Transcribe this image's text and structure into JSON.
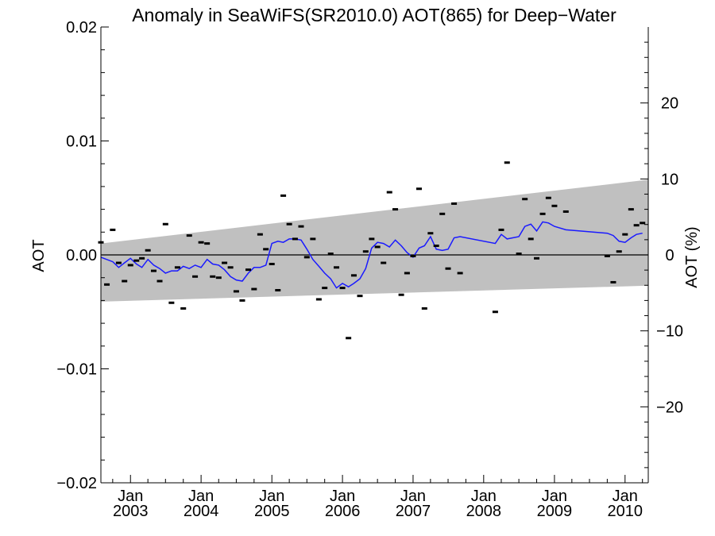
{
  "chart_data": {
    "type": "scatter",
    "title": "Anomaly in SeaWiFS(SR2010.0) AOT(865) for Deep−Water",
    "ylabel": "AOT",
    "y2label": "AOT (%)",
    "xlim": [
      "2002-08-01",
      "2010-05-01"
    ],
    "ylim": [
      -0.02,
      0.02
    ],
    "y2lim": [
      -30,
      30
    ],
    "yticks": [
      {
        "value": 0.02,
        "label": "0.02"
      },
      {
        "value": 0.01,
        "label": "0.01"
      },
      {
        "value": 0.0,
        "label": "0.00"
      },
      {
        "value": -0.01,
        "label": "−0.01"
      },
      {
        "value": -0.02,
        "label": "−0.02"
      }
    ],
    "y2ticks": [
      {
        "value": 20,
        "label": "20"
      },
      {
        "value": 10,
        "label": "10"
      },
      {
        "value": 0,
        "label": "0"
      },
      {
        "value": -10,
        "label": "−10"
      },
      {
        "value": -20,
        "label": "−20"
      }
    ],
    "xticks": [
      {
        "date": "2003-01-01",
        "month": "Jan",
        "year": "2003"
      },
      {
        "date": "2004-01-01",
        "month": "Jan",
        "year": "2004"
      },
      {
        "date": "2005-01-01",
        "month": "Jan",
        "year": "2005"
      },
      {
        "date": "2006-01-01",
        "month": "Jan",
        "year": "2006"
      },
      {
        "date": "2007-01-01",
        "month": "Jan",
        "year": "2007"
      },
      {
        "date": "2008-01-01",
        "month": "Jan",
        "year": "2008"
      },
      {
        "date": "2009-01-01",
        "month": "Jan",
        "year": "2009"
      },
      {
        "date": "2010-01-01",
        "month": "Jan",
        "year": "2010"
      }
    ],
    "band": {
      "color": "#c0c0c0",
      "x": [
        "2002-08-01",
        "2010-05-01"
      ],
      "upper": [
        0.001,
        0.0066
      ],
      "lower": [
        -0.0041,
        -0.0027
      ]
    },
    "zero_line": 0,
    "series": [
      {
        "marker": "dash",
        "color": "#000000",
        "points": [
          [
            "2002-08-01",
            0.0011
          ],
          [
            "2002-09-01",
            -0.0026
          ],
          [
            "2002-10-01",
            0.0022
          ],
          [
            "2002-11-01",
            -0.0007
          ],
          [
            "2002-12-01",
            -0.0023
          ],
          [
            "2003-01-01",
            -0.0009
          ],
          [
            "2003-02-01",
            -0.0005
          ],
          [
            "2003-03-01",
            -0.0003
          ],
          [
            "2003-04-01",
            0.0004
          ],
          [
            "2003-05-01",
            -0.0014
          ],
          [
            "2003-06-01",
            -0.0023
          ],
          [
            "2003-07-01",
            0.0027
          ],
          [
            "2003-08-01",
            -0.0042
          ],
          [
            "2003-09-01",
            -0.0011
          ],
          [
            "2003-10-01",
            -0.0047
          ],
          [
            "2003-11-01",
            0.0017
          ],
          [
            "2003-12-01",
            -0.0019
          ],
          [
            "2004-01-01",
            0.0011
          ],
          [
            "2004-02-01",
            0.001
          ],
          [
            "2004-03-01",
            -0.0019
          ],
          [
            "2004-04-01",
            -0.002
          ],
          [
            "2004-05-01",
            -0.0007
          ],
          [
            "2004-06-01",
            -0.0011
          ],
          [
            "2004-07-01",
            -0.0032
          ],
          [
            "2004-08-01",
            -0.004
          ],
          [
            "2004-09-01",
            -0.0013
          ],
          [
            "2004-10-01",
            -0.003
          ],
          [
            "2004-11-01",
            0.0018
          ],
          [
            "2004-12-01",
            0.0005
          ],
          [
            "2005-01-01",
            -0.0008
          ],
          [
            "2005-02-01",
            -0.0031
          ],
          [
            "2005-03-01",
            0.0052
          ],
          [
            "2005-04-01",
            0.0027
          ],
          [
            "2005-05-01",
            0.0014
          ],
          [
            "2005-06-01",
            0.0025
          ],
          [
            "2005-07-01",
            -0.0002
          ],
          [
            "2005-08-01",
            0.0014
          ],
          [
            "2005-09-01",
            -0.0039
          ],
          [
            "2005-10-01",
            -0.0029
          ],
          [
            "2005-11-01",
            0.0001
          ],
          [
            "2005-12-01",
            -0.0011
          ],
          [
            "2006-01-01",
            -0.0029
          ],
          [
            "2006-02-01",
            -0.0073
          ],
          [
            "2006-03-01",
            -0.0018
          ],
          [
            "2006-04-01",
            -0.0036
          ],
          [
            "2006-05-01",
            0.0003
          ],
          [
            "2006-06-01",
            0.0014
          ],
          [
            "2006-07-01",
            0.0007
          ],
          [
            "2006-08-01",
            -0.0007
          ],
          [
            "2006-09-01",
            0.0055
          ],
          [
            "2006-10-01",
            0.004
          ],
          [
            "2006-11-01",
            -0.0035
          ],
          [
            "2006-12-01",
            -0.0016
          ],
          [
            "2007-01-01",
            -0.0001
          ],
          [
            "2007-02-01",
            0.0058
          ],
          [
            "2007-03-01",
            -0.0047
          ],
          [
            "2007-04-01",
            0.0019
          ],
          [
            "2007-05-01",
            0.0008
          ],
          [
            "2007-06-01",
            0.0036
          ],
          [
            "2007-07-01",
            -0.0012
          ],
          [
            "2007-08-01",
            0.0045
          ],
          [
            "2007-09-01",
            -0.0016
          ],
          [
            "2008-03-01",
            -0.005
          ],
          [
            "2008-04-01",
            0.0022
          ],
          [
            "2008-05-01",
            0.0081
          ],
          [
            "2008-07-01",
            0.0001
          ],
          [
            "2008-08-01",
            0.0049
          ],
          [
            "2008-09-01",
            0.0014
          ],
          [
            "2008-10-01",
            -0.0003
          ],
          [
            "2008-11-01",
            0.0036
          ],
          [
            "2008-12-01",
            0.005
          ],
          [
            "2009-01-01",
            0.0043
          ],
          [
            "2009-03-01",
            0.0038
          ],
          [
            "2009-10-01",
            -0.0001
          ],
          [
            "2009-11-01",
            -0.0024
          ],
          [
            "2009-12-01",
            0.0003
          ],
          [
            "2010-01-01",
            0.0018
          ],
          [
            "2010-02-01",
            0.004
          ],
          [
            "2010-03-01",
            0.0026
          ],
          [
            "2010-04-01",
            0.0028
          ]
        ]
      },
      {
        "marker": "line",
        "color": "#1a1aff",
        "points": [
          [
            "2002-08-01",
            -0.0002
          ],
          [
            "2002-10-01",
            -0.0006
          ],
          [
            "2002-11-01",
            -0.0011
          ],
          [
            "2002-12-01",
            -0.0007
          ],
          [
            "2003-01-01",
            -0.0003
          ],
          [
            "2003-02-01",
            -0.0008
          ],
          [
            "2003-03-01",
            -0.0011
          ],
          [
            "2003-04-01",
            -0.0004
          ],
          [
            "2003-05-01",
            -0.0009
          ],
          [
            "2003-06-01",
            -0.0012
          ],
          [
            "2003-07-01",
            -0.0016
          ],
          [
            "2003-08-01",
            -0.0014
          ],
          [
            "2003-09-01",
            -0.0014
          ],
          [
            "2003-10-01",
            -0.001
          ],
          [
            "2003-11-01",
            -0.0012
          ],
          [
            "2003-12-01",
            -0.0009
          ],
          [
            "2004-01-01",
            -0.0011
          ],
          [
            "2004-02-01",
            -0.0004
          ],
          [
            "2004-03-01",
            -0.0008
          ],
          [
            "2004-04-01",
            -0.0009
          ],
          [
            "2004-05-01",
            -0.0013
          ],
          [
            "2004-06-01",
            -0.0019
          ],
          [
            "2004-07-01",
            -0.0022
          ],
          [
            "2004-08-01",
            -0.0023
          ],
          [
            "2004-09-01",
            -0.0016
          ],
          [
            "2004-10-01",
            -0.0011
          ],
          [
            "2004-11-01",
            -0.0011
          ],
          [
            "2004-12-01",
            -0.0009
          ],
          [
            "2005-01-01",
            0.001
          ],
          [
            "2005-02-01",
            0.0012
          ],
          [
            "2005-03-01",
            0.0011
          ],
          [
            "2005-04-01",
            0.0014
          ],
          [
            "2005-05-01",
            0.0014
          ],
          [
            "2005-06-01",
            0.0013
          ],
          [
            "2005-07-01",
            0.0005
          ],
          [
            "2005-08-01",
            -0.0004
          ],
          [
            "2005-09-01",
            -0.001
          ],
          [
            "2005-10-01",
            -0.0016
          ],
          [
            "2005-11-01",
            -0.0021
          ],
          [
            "2005-12-01",
            -0.0029
          ],
          [
            "2006-01-01",
            -0.0025
          ],
          [
            "2006-02-01",
            -0.0028
          ],
          [
            "2006-03-01",
            -0.0025
          ],
          [
            "2006-04-01",
            -0.0021
          ],
          [
            "2006-05-01",
            -0.0012
          ],
          [
            "2006-06-01",
            0.0006
          ],
          [
            "2006-07-01",
            0.0011
          ],
          [
            "2006-08-01",
            0.001
          ],
          [
            "2006-09-01",
            0.0007
          ],
          [
            "2006-10-01",
            0.0013
          ],
          [
            "2006-11-01",
            0.0008
          ],
          [
            "2006-12-01",
            0.0002
          ],
          [
            "2007-01-01",
            -0.0002
          ],
          [
            "2007-02-01",
            0.0006
          ],
          [
            "2007-03-01",
            0.0008
          ],
          [
            "2007-04-01",
            0.0016
          ],
          [
            "2007-05-01",
            0.0005
          ],
          [
            "2007-06-01",
            0.0004
          ],
          [
            "2007-07-01",
            0.0005
          ],
          [
            "2007-08-01",
            0.0015
          ],
          [
            "2007-09-01",
            0.0016
          ],
          [
            "2008-03-01",
            0.001
          ],
          [
            "2008-04-01",
            0.0018
          ],
          [
            "2008-05-01",
            0.0014
          ],
          [
            "2008-07-01",
            0.0016
          ],
          [
            "2008-08-01",
            0.0025
          ],
          [
            "2008-09-01",
            0.0027
          ],
          [
            "2008-10-01",
            0.0021
          ],
          [
            "2008-11-01",
            0.0029
          ],
          [
            "2008-12-01",
            0.0028
          ],
          [
            "2009-01-01",
            0.0025
          ],
          [
            "2009-03-01",
            0.0022
          ],
          [
            "2009-10-01",
            0.0019
          ],
          [
            "2009-11-01",
            0.0017
          ],
          [
            "2009-12-01",
            0.0012
          ],
          [
            "2010-01-01",
            0.0011
          ],
          [
            "2010-02-01",
            0.0015
          ],
          [
            "2010-03-01",
            0.0018
          ],
          [
            "2010-04-01",
            0.0019
          ]
        ]
      }
    ],
    "grid": false,
    "legend": "none"
  }
}
